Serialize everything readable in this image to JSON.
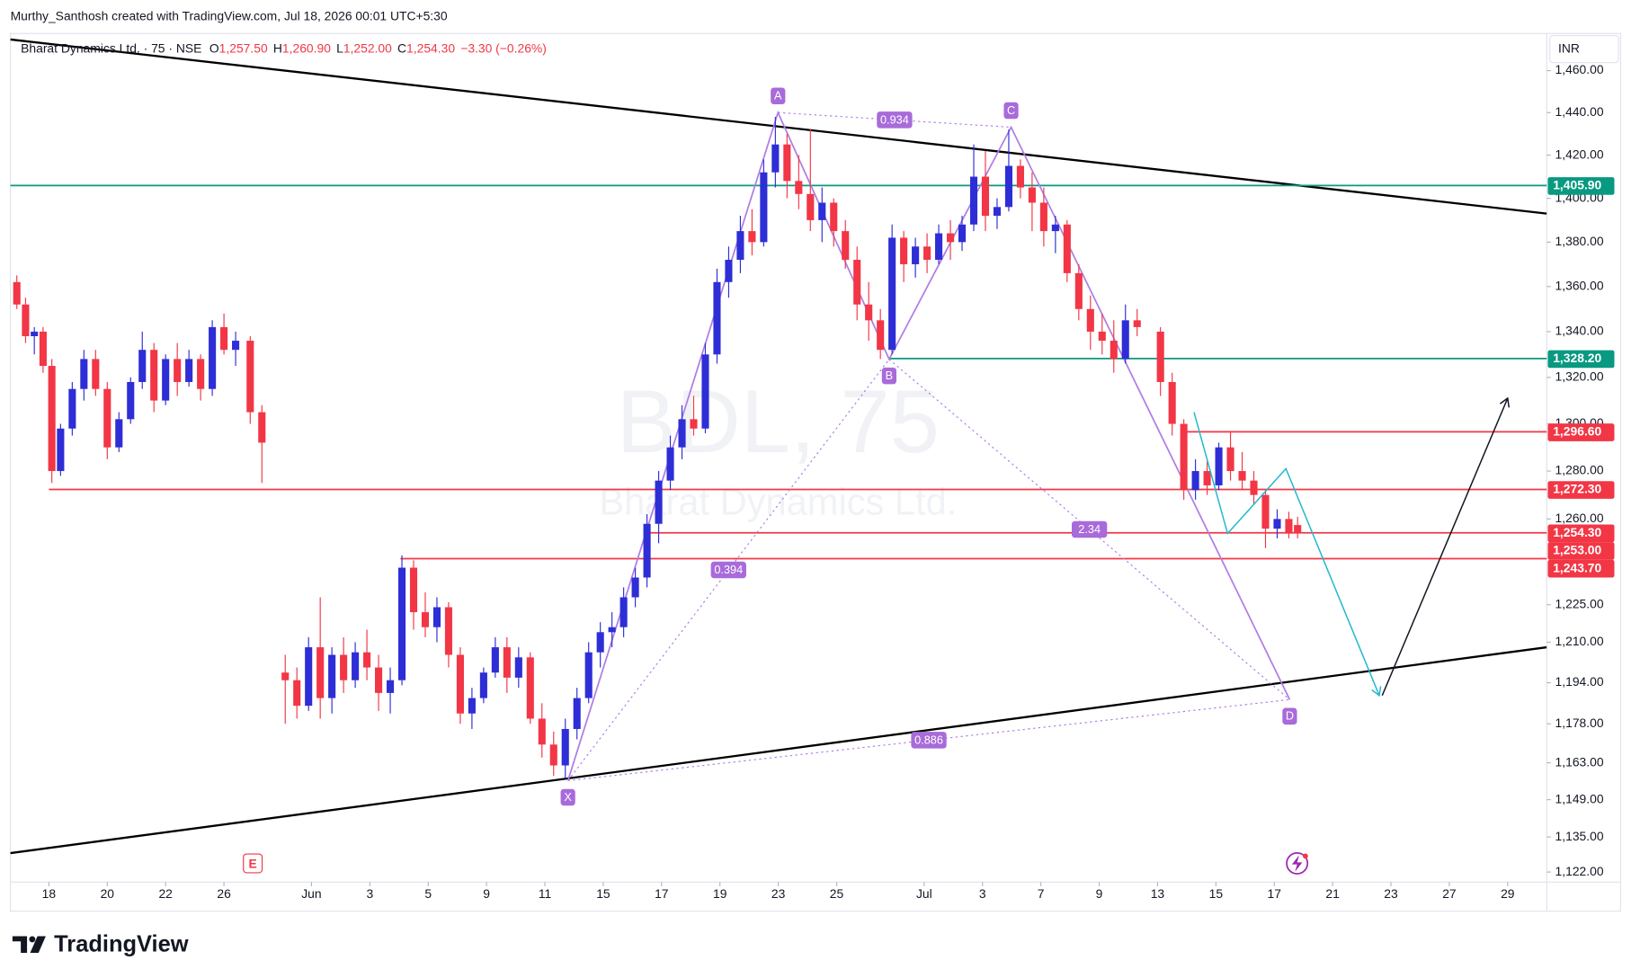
{
  "header": {
    "credit": "Murthy_Santhosh created with TradingView.com, Jul 18, 2026 00:01 UTC+5:30"
  },
  "chart_data": {
    "type": "candlestick",
    "symbol": "Bharat Dynamics Ltd. · 75 · NSE",
    "ohlc": [
      {
        "label": "O",
        "value": "1,257.50"
      },
      {
        "label": "H",
        "value": "1,260.90"
      },
      {
        "label": "L",
        "value": "1,252.00"
      },
      {
        "label": "C",
        "value": "1,254.30"
      }
    ],
    "change": "−3.30 (−0.26%)",
    "watermark": "BDL, 75",
    "watermark_name": "Bharat Dynamics Ltd.",
    "currency": "INR",
    "earnings_marker": "E",
    "brand": "TradingView",
    "log_scale": true,
    "up_color": "#2e2ed6",
    "down_color": "#f23645",
    "xlim": [
      -1.32,
      51.34
    ],
    "ylim": [
      1118.3,
      1477.9
    ],
    "xticks": [
      {
        "value": 0,
        "label": "18"
      },
      {
        "value": 2,
        "label": "20"
      },
      {
        "value": 4,
        "label": "22"
      },
      {
        "value": 6,
        "label": "26"
      },
      {
        "value": 9,
        "label": "Jun"
      },
      {
        "value": 11,
        "label": "3"
      },
      {
        "value": 13,
        "label": "5"
      },
      {
        "value": 15,
        "label": "9"
      },
      {
        "value": 17,
        "label": "11"
      },
      {
        "value": 19,
        "label": "15"
      },
      {
        "value": 21,
        "label": "17"
      },
      {
        "value": 23,
        "label": "19"
      },
      {
        "value": 25,
        "label": "23"
      },
      {
        "value": 27,
        "label": "25"
      },
      {
        "value": 30,
        "label": "Jul"
      },
      {
        "value": 32,
        "label": "3"
      },
      {
        "value": 34,
        "label": "7"
      },
      {
        "value": 36,
        "label": "9"
      },
      {
        "value": 38,
        "label": "13"
      },
      {
        "value": 40,
        "label": "15"
      },
      {
        "value": 42,
        "label": "17"
      },
      {
        "value": 44,
        "label": "21"
      },
      {
        "value": 46,
        "label": "23"
      },
      {
        "value": 48,
        "label": "27"
      },
      {
        "value": 50,
        "label": "29"
      }
    ],
    "yticks": [
      {
        "value": 1460,
        "label": "1,460.00"
      },
      {
        "value": 1440,
        "label": "1,440.00"
      },
      {
        "value": 1420,
        "label": "1,420.00"
      },
      {
        "value": 1400,
        "label": "1,400.00"
      },
      {
        "value": 1380,
        "label": "1,380.00"
      },
      {
        "value": 1360,
        "label": "1,360.00"
      },
      {
        "value": 1340,
        "label": "1,340.00"
      },
      {
        "value": 1320,
        "label": "1,320.00"
      },
      {
        "value": 1300,
        "label": "1,300.00"
      },
      {
        "value": 1280,
        "label": "1,280.00"
      },
      {
        "value": 1260,
        "label": "1,260.00"
      },
      {
        "value": 1225,
        "label": "1,225.00"
      },
      {
        "value": 1210,
        "label": "1,210.00"
      },
      {
        "value": 1194,
        "label": "1,194.00"
      },
      {
        "value": 1178,
        "label": "1,178.00"
      },
      {
        "value": 1163,
        "label": "1,163.00"
      },
      {
        "value": 1149,
        "label": "1,149.00"
      },
      {
        "value": 1135,
        "label": "1,135.00"
      },
      {
        "value": 1122,
        "label": "1,122.00"
      }
    ],
    "candles": [
      [
        -1.1,
        1362,
        1365,
        1350,
        1352
      ],
      [
        -0.8,
        1352,
        1355,
        1335,
        1338
      ],
      [
        -0.5,
        1338,
        1342,
        1330,
        1340
      ],
      [
        -0.2,
        1340,
        1342,
        1322,
        1325
      ],
      [
        0.1,
        1325,
        1328,
        1275,
        1280
      ],
      [
        0.4,
        1280,
        1300,
        1278,
        1298
      ],
      [
        0.8,
        1298,
        1318,
        1295,
        1315
      ],
      [
        1.2,
        1315,
        1332,
        1310,
        1328
      ],
      [
        1.6,
        1328,
        1332,
        1312,
        1315
      ],
      [
        2.0,
        1315,
        1318,
        1285,
        1290
      ],
      [
        2.4,
        1290,
        1305,
        1288,
        1302
      ],
      [
        2.8,
        1302,
        1320,
        1300,
        1318
      ],
      [
        3.2,
        1318,
        1340,
        1315,
        1332
      ],
      [
        3.6,
        1332,
        1335,
        1305,
        1310
      ],
      [
        4.0,
        1310,
        1330,
        1308,
        1328
      ],
      [
        4.4,
        1328,
        1335,
        1312,
        1318
      ],
      [
        4.8,
        1318,
        1332,
        1316,
        1328
      ],
      [
        5.2,
        1328,
        1330,
        1310,
        1315
      ],
      [
        5.6,
        1315,
        1345,
        1312,
        1342
      ],
      [
        6.0,
        1342,
        1348,
        1330,
        1332
      ],
      [
        6.4,
        1332,
        1340,
        1325,
        1336
      ],
      [
        6.9,
        1336,
        1338,
        1300,
        1305
      ],
      [
        7.3,
        1305,
        1308,
        1275,
        1292
      ],
      [
        8.1,
        1198,
        1205,
        1178,
        1195
      ],
      [
        8.5,
        1195,
        1200,
        1180,
        1185
      ],
      [
        8.9,
        1185,
        1212,
        1183,
        1208
      ],
      [
        9.3,
        1208,
        1228,
        1180,
        1188
      ],
      [
        9.7,
        1188,
        1208,
        1182,
        1205
      ],
      [
        10.1,
        1205,
        1212,
        1190,
        1195
      ],
      [
        10.5,
        1195,
        1210,
        1192,
        1206
      ],
      [
        10.9,
        1206,
        1215,
        1195,
        1200
      ],
      [
        11.3,
        1200,
        1205,
        1183,
        1190
      ],
      [
        11.7,
        1190,
        1200,
        1182,
        1195
      ],
      [
        12.1,
        1195,
        1245,
        1193,
        1240
      ],
      [
        12.5,
        1240,
        1243,
        1215,
        1222
      ],
      [
        12.9,
        1222,
        1230,
        1212,
        1216
      ],
      [
        13.3,
        1216,
        1228,
        1210,
        1224
      ],
      [
        13.7,
        1224,
        1226,
        1200,
        1205
      ],
      [
        14.1,
        1205,
        1208,
        1178,
        1182
      ],
      [
        14.5,
        1182,
        1192,
        1176,
        1188
      ],
      [
        14.9,
        1188,
        1200,
        1186,
        1198
      ],
      [
        15.3,
        1198,
        1212,
        1196,
        1208
      ],
      [
        15.7,
        1208,
        1212,
        1190,
        1196
      ],
      [
        16.1,
        1196,
        1208,
        1192,
        1204
      ],
      [
        16.5,
        1204,
        1206,
        1178,
        1180
      ],
      [
        16.9,
        1180,
        1186,
        1165,
        1170
      ],
      [
        17.3,
        1170,
        1175,
        1158,
        1162
      ],
      [
        17.7,
        1162,
        1180,
        1157,
        1176
      ],
      [
        18.1,
        1176,
        1192,
        1172,
        1188
      ],
      [
        18.5,
        1188,
        1210,
        1186,
        1206
      ],
      [
        18.9,
        1206,
        1218,
        1200,
        1214
      ],
      [
        19.3,
        1214,
        1222,
        1208,
        1216
      ],
      [
        19.7,
        1216,
        1232,
        1212,
        1228
      ],
      [
        20.1,
        1228,
        1240,
        1224,
        1236
      ],
      [
        20.5,
        1236,
        1262,
        1232,
        1258
      ],
      [
        20.9,
        1258,
        1280,
        1250,
        1276
      ],
      [
        21.3,
        1276,
        1295,
        1272,
        1290
      ],
      [
        21.7,
        1290,
        1308,
        1285,
        1302
      ],
      [
        22.1,
        1302,
        1312,
        1295,
        1298
      ],
      [
        22.5,
        1298,
        1335,
        1296,
        1330
      ],
      [
        22.9,
        1330,
        1368,
        1326,
        1362
      ],
      [
        23.3,
        1362,
        1378,
        1355,
        1372
      ],
      [
        23.7,
        1372,
        1392,
        1366,
        1385
      ],
      [
        24.1,
        1385,
        1395,
        1374,
        1380
      ],
      [
        24.5,
        1380,
        1418,
        1378,
        1412
      ],
      [
        24.9,
        1412,
        1438,
        1405,
        1425
      ],
      [
        25.3,
        1425,
        1430,
        1400,
        1408
      ],
      [
        25.7,
        1408,
        1420,
        1395,
        1402
      ],
      [
        26.1,
        1402,
        1432,
        1385,
        1390
      ],
      [
        26.5,
        1390,
        1405,
        1380,
        1398
      ],
      [
        26.9,
        1398,
        1400,
        1378,
        1385
      ],
      [
        27.3,
        1385,
        1390,
        1368,
        1372
      ],
      [
        27.7,
        1372,
        1378,
        1345,
        1352
      ],
      [
        28.1,
        1352,
        1362,
        1336,
        1345
      ],
      [
        28.5,
        1345,
        1350,
        1328,
        1332
      ],
      [
        28.9,
        1332,
        1388,
        1330,
        1382
      ],
      [
        29.3,
        1382,
        1385,
        1362,
        1370
      ],
      [
        29.7,
        1370,
        1382,
        1364,
        1378
      ],
      [
        30.1,
        1378,
        1384,
        1366,
        1372
      ],
      [
        30.5,
        1372,
        1388,
        1370,
        1384
      ],
      [
        30.9,
        1384,
        1390,
        1372,
        1380
      ],
      [
        31.3,
        1380,
        1392,
        1376,
        1388
      ],
      [
        31.7,
        1388,
        1425,
        1385,
        1410
      ],
      [
        32.1,
        1410,
        1422,
        1385,
        1392
      ],
      [
        32.5,
        1392,
        1400,
        1386,
        1396
      ],
      [
        32.9,
        1396,
        1432,
        1394,
        1415
      ],
      [
        33.3,
        1415,
        1418,
        1400,
        1405
      ],
      [
        33.7,
        1405,
        1412,
        1385,
        1398
      ],
      [
        34.1,
        1398,
        1405,
        1378,
        1385
      ],
      [
        34.5,
        1385,
        1392,
        1375,
        1388
      ],
      [
        34.9,
        1388,
        1390,
        1362,
        1366
      ],
      [
        35.3,
        1366,
        1370,
        1345,
        1350
      ],
      [
        35.7,
        1350,
        1356,
        1332,
        1340
      ],
      [
        36.1,
        1340,
        1348,
        1330,
        1336
      ],
      [
        36.5,
        1336,
        1345,
        1322,
        1328
      ],
      [
        36.9,
        1328,
        1352,
        1326,
        1345
      ],
      [
        37.3,
        1345,
        1350,
        1338,
        1342
      ],
      [
        38.1,
        1340,
        1342,
        1312,
        1318
      ],
      [
        38.5,
        1318,
        1322,
        1295,
        1300
      ],
      [
        38.9,
        1300,
        1302,
        1268,
        1272
      ],
      [
        39.3,
        1272,
        1285,
        1268,
        1280
      ],
      [
        39.7,
        1280,
        1284,
        1270,
        1274
      ],
      [
        40.1,
        1274,
        1292,
        1272,
        1290
      ],
      [
        40.5,
        1290,
        1297,
        1276,
        1280
      ],
      [
        40.9,
        1280,
        1288,
        1272,
        1276
      ],
      [
        41.3,
        1276,
        1280,
        1266,
        1270
      ],
      [
        41.7,
        1270,
        1272,
        1248,
        1256
      ],
      [
        42.1,
        1256,
        1264,
        1252,
        1260
      ],
      [
        42.5,
        1260,
        1263,
        1252,
        1254
      ],
      [
        42.8,
        1257.5,
        1260.9,
        1252,
        1254.3
      ]
    ],
    "levels": [
      {
        "value": 1405.9,
        "label": "1,405.90",
        "color": "#089981",
        "from": -1.32
      },
      {
        "value": 1328.2,
        "label": "1,328.20",
        "color": "#089981",
        "from": 28.8
      },
      {
        "value": 1296.6,
        "label": "1,296.60",
        "color": "#f23645",
        "from": 38.97
      },
      {
        "value": 1272.3,
        "label": "1,272.30",
        "color": "#f23645",
        "from": 0.0
      },
      {
        "value": 1254.3,
        "label": "1,254.30",
        "color": "#f23645",
        "from": 20.6
      },
      {
        "value": 1253.0,
        "label": "1,253.00",
        "color": "#f23645"
      },
      {
        "value": 1243.7,
        "label": "1,243.70",
        "color": "#f23645",
        "from": 12.05
      }
    ],
    "trendlines": [
      {
        "color": "#000000",
        "x": [
          -1.32,
          51.34
        ],
        "y": [
          1475,
          1393
        ]
      },
      {
        "color": "#000000",
        "x": [
          -1.32,
          51.34
        ],
        "y": [
          1129,
          1208
        ]
      }
    ],
    "pattern": {
      "color": "#b07de3",
      "points": [
        {
          "label": "X",
          "x": 17.79,
          "y": 1156.2
        },
        {
          "label": "A",
          "x": 24.99,
          "y": 1440
        },
        {
          "label": "B",
          "x": 28.8,
          "y": 1327.9
        },
        {
          "label": "C",
          "x": 32.98,
          "y": 1433.1
        },
        {
          "label": "D",
          "x": 42.53,
          "y": 1187.4
        }
      ],
      "ratios": [
        0.934,
        0.394,
        2.34,
        0.886
      ]
    },
    "projections": [
      {
        "color": "#22b8cf",
        "x": [
          39.25,
          40.4,
          42.4,
          45.6
        ],
        "y": [
          1305,
          1254,
          1281,
          1189
        ]
      },
      {
        "color": "#131722",
        "x": [
          45.7,
          50.0
        ],
        "y": [
          1189,
          1311
        ]
      }
    ]
  }
}
